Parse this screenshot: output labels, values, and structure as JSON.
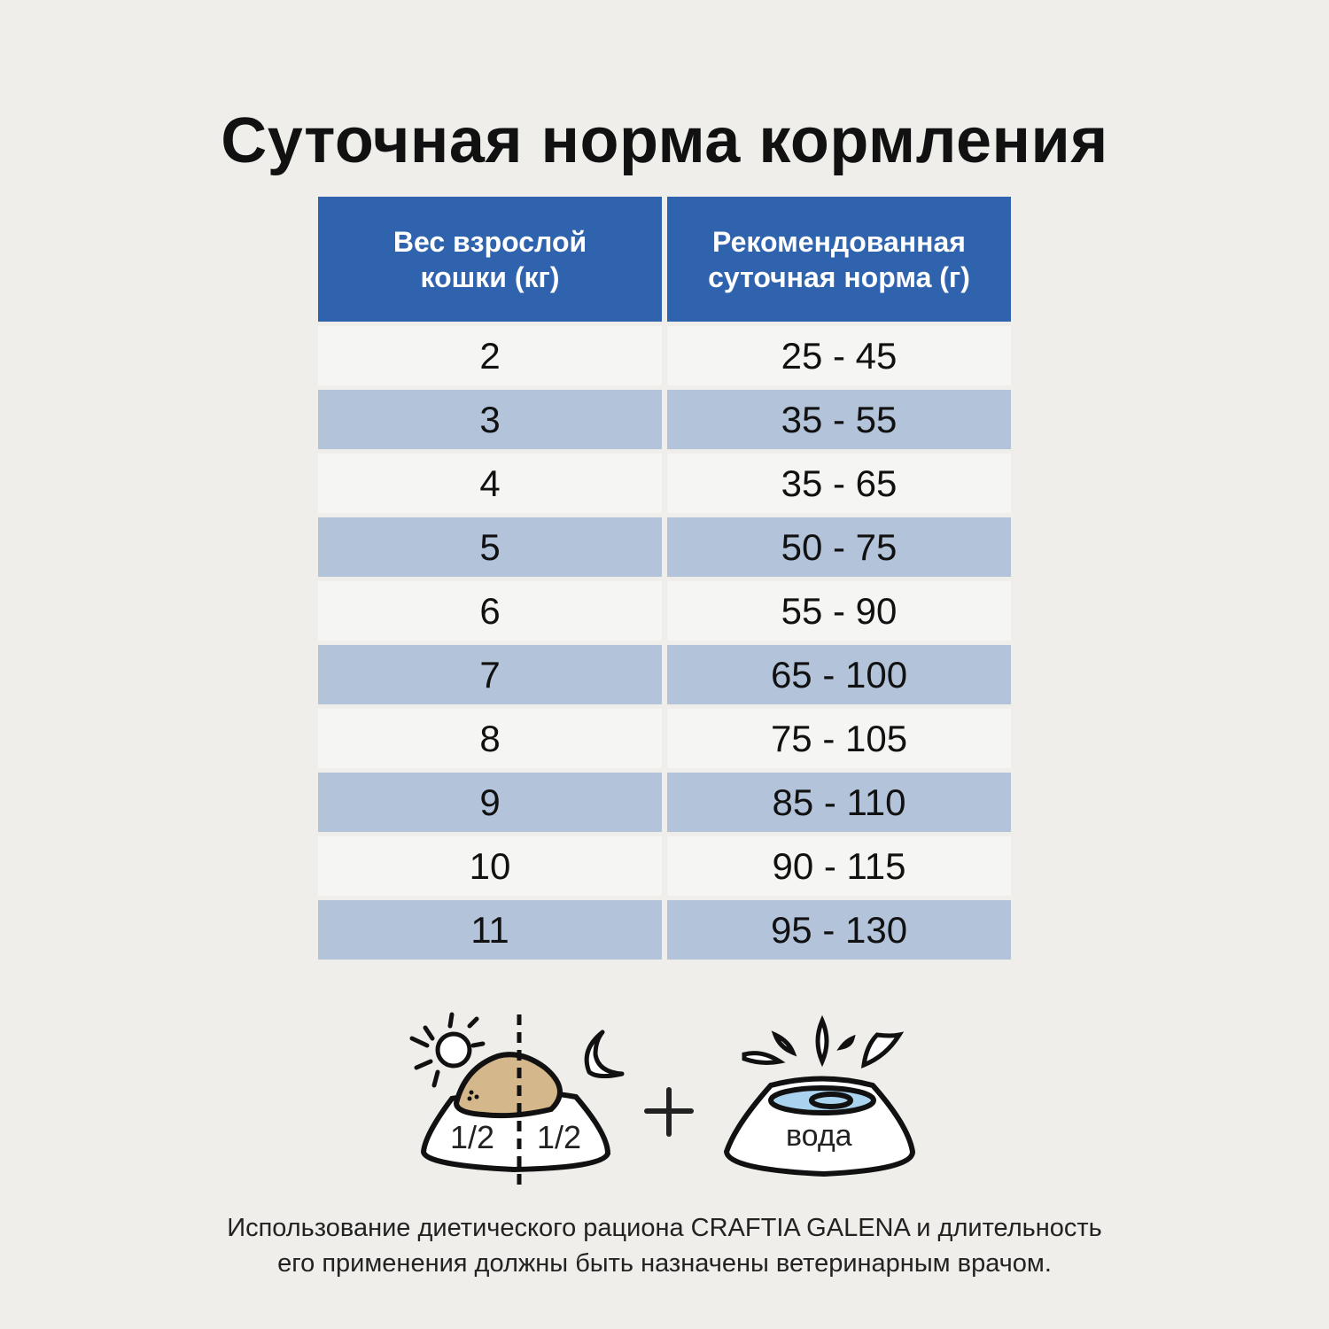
{
  "title": "Суточная норма кормления",
  "table": {
    "headers": [
      "Вес взрослой кошки (кг)",
      "Рекомендованная суточная норма (г)"
    ],
    "rows": [
      [
        "2",
        "25 - 45"
      ],
      [
        "3",
        "35 - 55"
      ],
      [
        "4",
        "35 - 65"
      ],
      [
        "5",
        "50 - 75"
      ],
      [
        "6",
        "55 - 90"
      ],
      [
        "7",
        "65 - 100"
      ],
      [
        "8",
        "75 - 105"
      ],
      [
        "9",
        "85 - 110"
      ],
      [
        "10",
        "90 - 115"
      ],
      [
        "11",
        "95 - 130"
      ]
    ]
  },
  "illustration": {
    "food_bowl_left_label": "1/2",
    "food_bowl_right_label": "1/2",
    "water_bowl_label": "вода",
    "icons": [
      "sun-icon",
      "moon-icon",
      "food-bowl-icon",
      "plus-icon",
      "water-bowl-icon",
      "water-splash-icon"
    ]
  },
  "note": {
    "line1": "Использование диетического рациона CRAFTIA GALENA и длительность",
    "line2": "его применения должны быть назначены ветеринарным врачом."
  },
  "colors": {
    "header": "#3063ae",
    "row_alt": "#b3c3da",
    "row": "#f5f5f3",
    "food": "#d4b78a",
    "water": "#a9d3ee"
  }
}
